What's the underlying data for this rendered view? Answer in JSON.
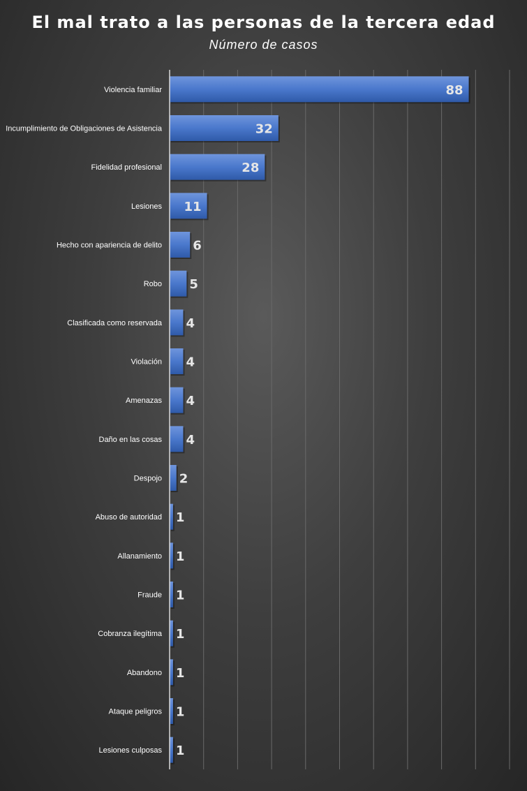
{
  "chart_data": {
    "type": "bar",
    "orientation": "horizontal",
    "title": "El mal trato a las personas de la tercera edad",
    "subtitle": "Número de casos",
    "categories": [
      "Violencia familiar",
      "Incumplimiento de Obligaciones de Asistencia",
      "Fidelidad profesional",
      "Lesiones",
      "Hecho con apariencia de delito",
      "Robo",
      "Clasificada como reservada",
      "Violación",
      "Amenazas",
      "Daño en las cosas",
      "Despojo",
      "Abuso de autoridad",
      "Allanamiento",
      "Fraude",
      "Cobranza ilegítima",
      "Abandono",
      "Ataque peligros",
      "Lesiones culposas"
    ],
    "values": [
      88,
      32,
      28,
      11,
      6,
      5,
      4,
      4,
      4,
      4,
      2,
      1,
      1,
      1,
      1,
      1,
      1,
      1
    ],
    "xlim": [
      0,
      100
    ],
    "grid": true,
    "data_labels": true,
    "bar_color": "#4472c4"
  }
}
